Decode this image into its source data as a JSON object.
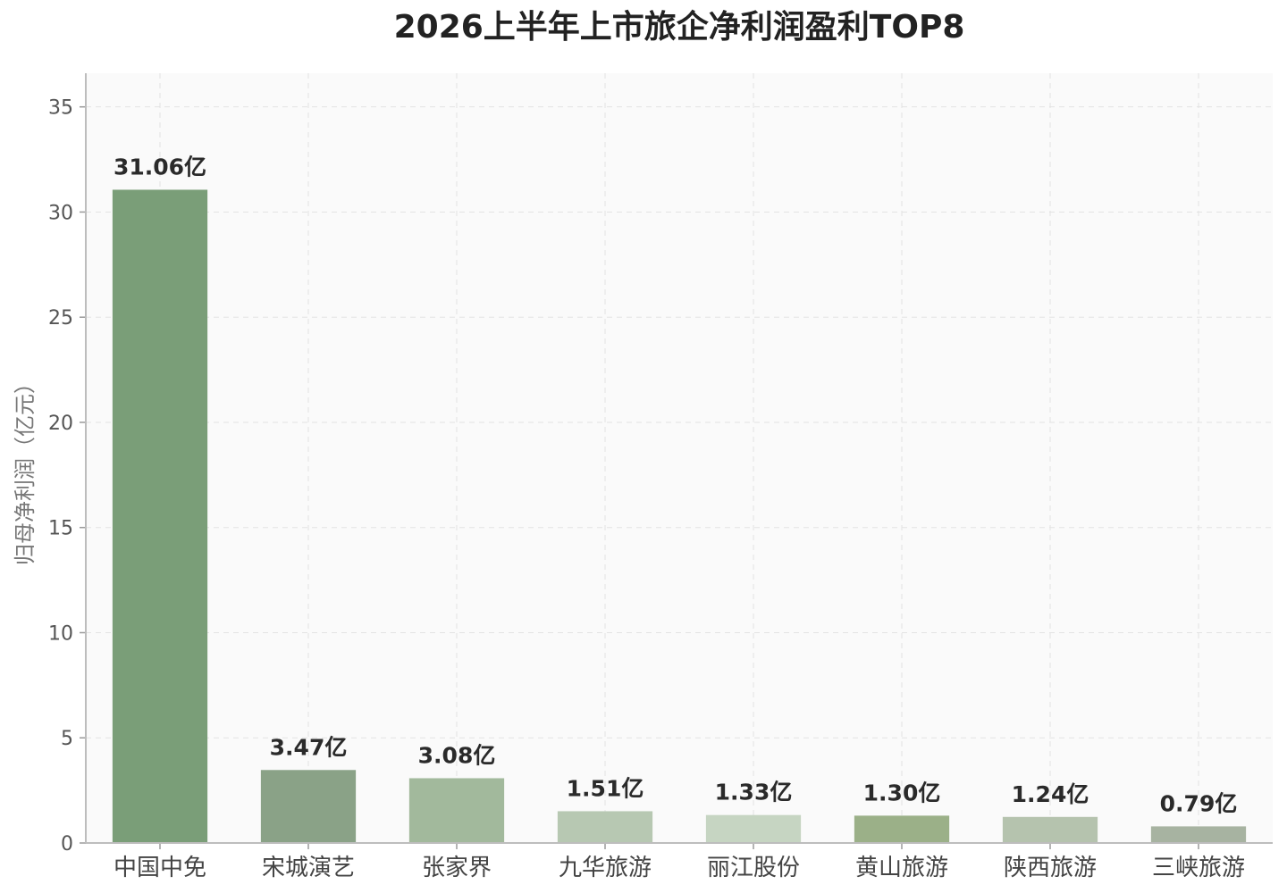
{
  "chart_data": {
    "type": "bar",
    "title": "2026上半年上市旅企净利润盈利TOP8",
    "ylabel": "归母净利润（亿元）",
    "xlabel": "",
    "categories": [
      "中国中免",
      "宋城演艺",
      "张家界",
      "九华旅游",
      "丽江股份",
      "黄山旅游",
      "陕西旅游",
      "三峡旅游"
    ],
    "values": [
      31.06,
      3.47,
      3.08,
      1.51,
      1.33,
      1.3,
      1.24,
      0.79
    ],
    "value_labels": [
      "31.06亿",
      "3.47亿",
      "3.08亿",
      "1.51亿",
      "1.33亿",
      "1.30亿",
      "1.24亿",
      "0.79亿"
    ],
    "ylim": [
      0,
      35
    ],
    "yticks": [
      0,
      5,
      10,
      15,
      20,
      25,
      30,
      35
    ],
    "grid": true,
    "bar_colors": [
      "#7a9e78",
      "#8aa287",
      "#a2b99c",
      "#b7c8b2",
      "#c6d5c2",
      "#9bb088",
      "#b5c3ae",
      "#a7b3a1"
    ],
    "plot_background": "#fafafa"
  }
}
